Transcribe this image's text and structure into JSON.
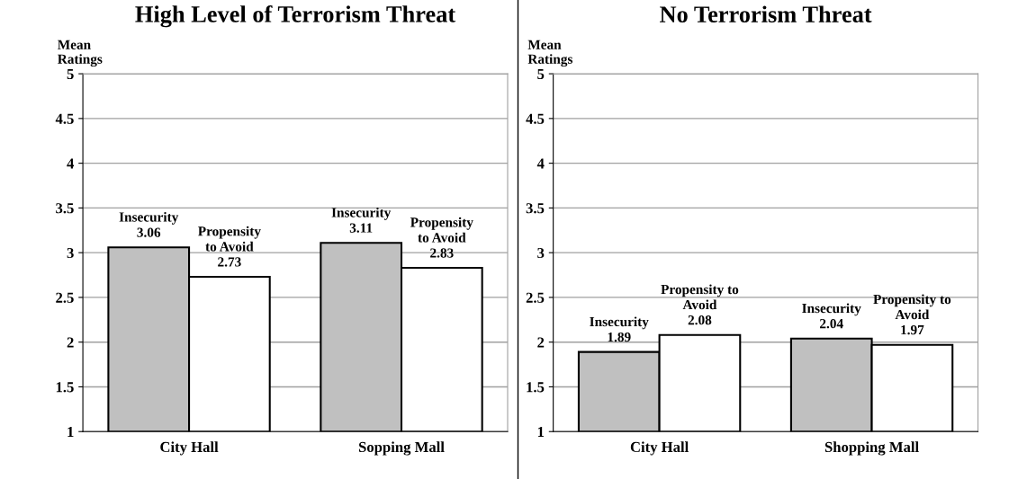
{
  "chart_data": [
    {
      "type": "bar",
      "title": "High Level of Terrorism Threat",
      "ylabel": "Mean\nRatings",
      "categories": [
        "City Hall",
        "Sopping Mall"
      ],
      "ylim": [
        1,
        5
      ],
      "yticks": [
        1,
        1.5,
        2,
        2.5,
        3,
        3.5,
        4,
        4.5,
        5
      ],
      "grid": "y",
      "legend": false,
      "series": [
        {
          "color": "#c0c0c0",
          "values": [
            3.06,
            3.11
          ],
          "value_labels": [
            "Insecurity\n3.06",
            "Insecurity\n3.11"
          ]
        },
        {
          "color": "#ffffff",
          "values": [
            2.73,
            2.83
          ],
          "value_labels": [
            "Propensity\nto Avoid\n2.73",
            "Propensity\nto Avoid\n2.83"
          ]
        }
      ]
    },
    {
      "type": "bar",
      "title": "No Terrorism Threat",
      "ylabel": "Mean\nRatings",
      "categories": [
        "City Hall",
        "Shopping Mall"
      ],
      "ylim": [
        1,
        5
      ],
      "yticks": [
        1,
        1.5,
        2,
        2.5,
        3,
        3.5,
        4,
        4.5,
        5
      ],
      "grid": "y",
      "legend": false,
      "series": [
        {
          "color": "#c0c0c0",
          "values": [
            1.89,
            2.04
          ],
          "value_labels": [
            "Insecurity\n1.89",
            "Insecurity\n2.04"
          ]
        },
        {
          "color": "#ffffff",
          "values": [
            2.08,
            1.97
          ],
          "value_labels": [
            "Propensity to\nAvoid\n2.08",
            "Propensity to\nAvoid\n1.97"
          ]
        }
      ]
    }
  ]
}
